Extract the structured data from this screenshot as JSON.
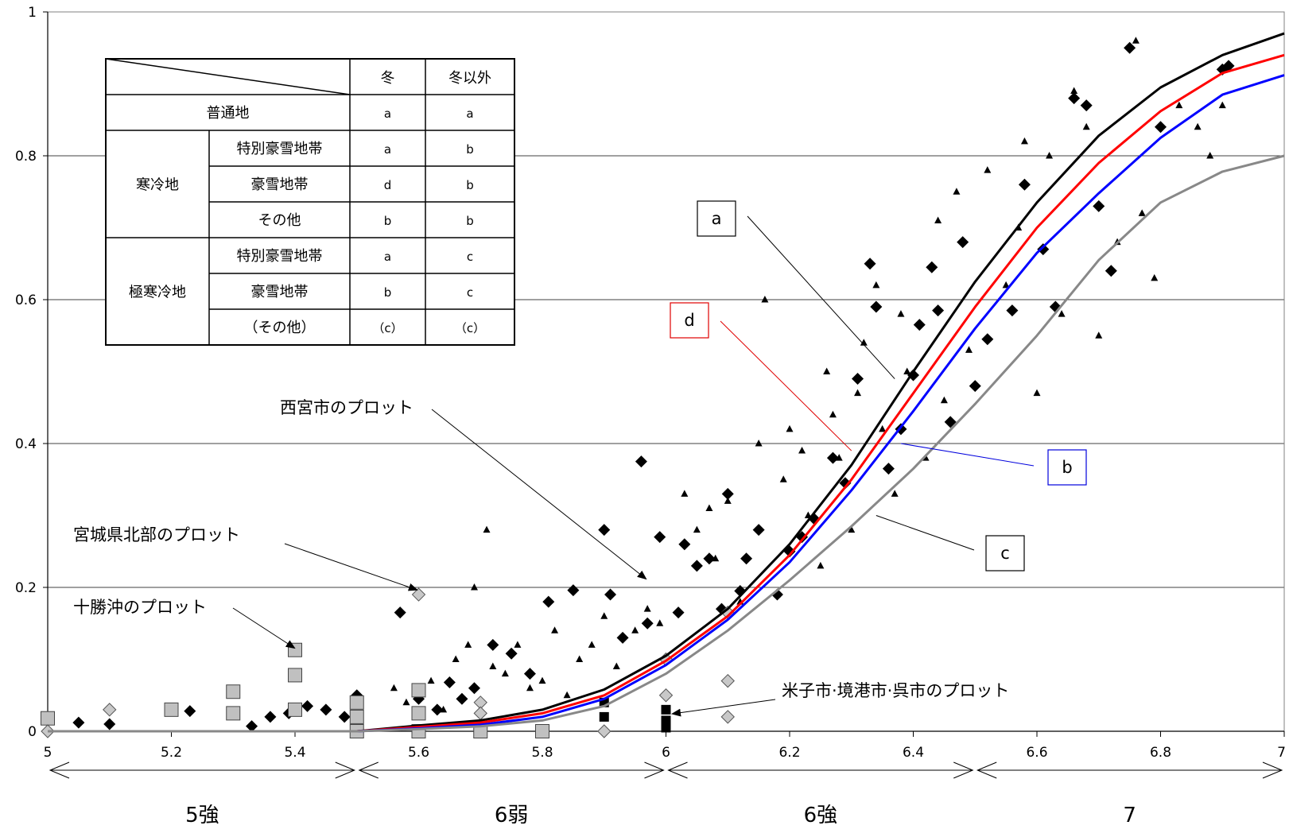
{
  "chart_data": {
    "type": "scatter",
    "title": "",
    "xlabel": "",
    "ylabel": "",
    "xlim": [
      5,
      7
    ],
    "ylim": [
      0,
      1
    ],
    "grid": "horizontal",
    "x_ticks": [
      "5",
      "5.2",
      "5.4",
      "5.6",
      "5.8",
      "6",
      "6.2",
      "6.4",
      "6.6",
      "6.8",
      "7"
    ],
    "y_ticks": [
      "0",
      "0.2",
      "0.4",
      "0.6",
      "0.8",
      "1"
    ],
    "intensity_bands": [
      {
        "label": "5強",
        "from": 5.0,
        "to": 5.5
      },
      {
        "label": "6弱",
        "from": 5.5,
        "to": 6.0
      },
      {
        "label": "6強",
        "from": 6.0,
        "to": 6.5
      },
      {
        "label": "7",
        "from": 6.5,
        "to": 7.0
      }
    ],
    "curves": [
      {
        "key": "a",
        "label": "a",
        "color": "#000000",
        "x": [
          5.0,
          5.5,
          5.6,
          5.7,
          5.8,
          5.9,
          6.0,
          6.1,
          6.2,
          6.3,
          6.4,
          6.5,
          6.6,
          6.7,
          6.8,
          6.9,
          7.0
        ],
        "y": [
          0.0,
          0.0,
          0.008,
          0.015,
          0.03,
          0.058,
          0.105,
          0.17,
          0.26,
          0.37,
          0.5,
          0.625,
          0.735,
          0.828,
          0.895,
          0.94,
          0.97
        ]
      },
      {
        "key": "d",
        "label": "d",
        "color": "#ff0000",
        "x": [
          5.0,
          5.5,
          5.6,
          5.7,
          5.8,
          5.9,
          6.0,
          6.1,
          6.2,
          6.3,
          6.4,
          6.5,
          6.6,
          6.7,
          6.8,
          6.9,
          7.0
        ],
        "y": [
          0.0,
          0.0,
          0.006,
          0.012,
          0.025,
          0.05,
          0.098,
          0.16,
          0.245,
          0.35,
          0.47,
          0.59,
          0.7,
          0.79,
          0.862,
          0.915,
          0.94
        ]
      },
      {
        "key": "b",
        "label": "b",
        "color": "#0000ff",
        "x": [
          5.0,
          5.5,
          5.6,
          5.7,
          5.8,
          5.9,
          6.0,
          6.1,
          6.2,
          6.3,
          6.4,
          6.5,
          6.6,
          6.7,
          6.8,
          6.9,
          7.0
        ],
        "y": [
          0.0,
          0.0,
          0.004,
          0.009,
          0.02,
          0.045,
          0.092,
          0.155,
          0.235,
          0.335,
          0.445,
          0.56,
          0.665,
          0.748,
          0.825,
          0.885,
          0.912
        ]
      },
      {
        "key": "c",
        "label": "c",
        "color": "#888888",
        "x": [
          5.0,
          5.5,
          5.6,
          5.7,
          5.8,
          5.9,
          6.0,
          6.1,
          6.2,
          6.3,
          6.4,
          6.5,
          6.6,
          6.7,
          6.8,
          6.9,
          7.0
        ],
        "y": [
          0.0,
          0.0,
          0.003,
          0.007,
          0.015,
          0.035,
          0.08,
          0.14,
          0.21,
          0.285,
          0.365,
          0.455,
          0.55,
          0.655,
          0.735,
          0.778,
          0.8
        ]
      }
    ],
    "series": [
      {
        "name": "西宮市のプロット",
        "marker": "diamond-black",
        "x": [
          5.05,
          5.1,
          5.23,
          5.33,
          5.36,
          5.39,
          5.42,
          5.45,
          5.48,
          5.5,
          5.57,
          5.6,
          5.63,
          5.65,
          5.67,
          5.69,
          5.72,
          5.75,
          5.78,
          5.81,
          5.85,
          5.9,
          5.91,
          5.93,
          5.96,
          5.97,
          5.99,
          6.02,
          6.03,
          6.05,
          6.07,
          6.09,
          6.1,
          6.12,
          6.13,
          6.15,
          6.18,
          6.2,
          6.22,
          6.24,
          6.27,
          6.29,
          6.31,
          6.33,
          6.34,
          6.36,
          6.38,
          6.4,
          6.41,
          6.43,
          6.44,
          6.46,
          6.48,
          6.5,
          6.52,
          6.56,
          6.58,
          6.61,
          6.63,
          6.66,
          6.68,
          6.7,
          6.72,
          6.75,
          6.8,
          6.9,
          6.91
        ],
        "y": [
          0.012,
          0.01,
          0.028,
          0.007,
          0.02,
          0.025,
          0.035,
          0.03,
          0.02,
          0.05,
          0.165,
          0.045,
          0.03,
          0.068,
          0.045,
          0.06,
          0.12,
          0.108,
          0.08,
          0.18,
          0.196,
          0.28,
          0.19,
          0.13,
          0.375,
          0.15,
          0.27,
          0.165,
          0.26,
          0.23,
          0.24,
          0.17,
          0.33,
          0.195,
          0.24,
          0.28,
          0.19,
          0.25,
          0.27,
          0.295,
          0.38,
          0.345,
          0.49,
          0.65,
          0.59,
          0.365,
          0.42,
          0.495,
          0.565,
          0.645,
          0.585,
          0.43,
          0.68,
          0.48,
          0.545,
          0.585,
          0.76,
          0.67,
          0.59,
          0.88,
          0.87,
          0.73,
          0.64,
          0.95,
          0.84,
          0.92,
          0.925
        ]
      },
      {
        "name": "宮城県北部のプロット",
        "marker": "diamond-gray",
        "x": [
          5.0,
          5.1,
          5.6,
          5.7,
          5.7,
          5.9,
          6.0,
          6.0,
          6.1,
          6.1,
          6.1
        ],
        "y": [
          0.0,
          0.03,
          0.19,
          0.04,
          0.025,
          0.0,
          0.1,
          0.05,
          0.165,
          0.07,
          0.02
        ],
        "labeled": true
      },
      {
        "name": "十勝沖のプロット",
        "marker": "square-gray",
        "x": [
          5.0,
          5.2,
          5.3,
          5.3,
          5.4,
          5.4,
          5.4,
          5.5,
          5.5,
          5.5,
          5.6,
          5.6,
          5.6,
          5.7,
          5.8
        ],
        "y": [
          0.018,
          0.03,
          0.055,
          0.025,
          0.113,
          0.078,
          0.03,
          0.04,
          0.02,
          0.0,
          0.057,
          0.025,
          0.0,
          0.0,
          0.0
        ],
        "labeled": true
      },
      {
        "name": "米子市・境港市・呉市のプロット",
        "marker": "square-black",
        "x": [
          5.9,
          5.9,
          6.0,
          6.0,
          6.0
        ],
        "y": [
          0.04,
          0.02,
          0.03,
          0.015,
          0.005
        ],
        "labeled": true
      },
      {
        "name": "small-triangles",
        "marker": "triangle",
        "x": [
          5.56,
          5.58,
          5.62,
          5.64,
          5.66,
          5.68,
          5.69,
          5.71,
          5.72,
          5.74,
          5.76,
          5.78,
          5.8,
          5.82,
          5.84,
          5.86,
          5.88,
          5.9,
          5.92,
          5.95,
          5.97,
          5.99,
          6.03,
          6.05,
          6.07,
          6.08,
          6.1,
          6.12,
          6.15,
          6.16,
          6.18,
          6.19,
          6.2,
          6.22,
          6.23,
          6.25,
          6.26,
          6.27,
          6.28,
          6.3,
          6.31,
          6.32,
          6.34,
          6.35,
          6.37,
          6.38,
          6.39,
          6.42,
          6.44,
          6.45,
          6.47,
          6.49,
          6.52,
          6.55,
          6.57,
          6.58,
          6.6,
          6.62,
          6.64,
          6.66,
          6.68,
          6.7,
          6.73,
          6.76,
          6.77,
          6.79,
          6.83,
          6.86,
          6.88,
          6.9
        ],
        "y": [
          0.06,
          0.04,
          0.07,
          0.03,
          0.1,
          0.12,
          0.2,
          0.28,
          0.09,
          0.08,
          0.12,
          0.06,
          0.07,
          0.14,
          0.05,
          0.1,
          0.12,
          0.16,
          0.09,
          0.14,
          0.17,
          0.15,
          0.33,
          0.28,
          0.31,
          0.24,
          0.32,
          0.18,
          0.4,
          0.6,
          0.19,
          0.35,
          0.42,
          0.39,
          0.3,
          0.23,
          0.5,
          0.44,
          0.38,
          0.28,
          0.47,
          0.54,
          0.62,
          0.42,
          0.33,
          0.58,
          0.5,
          0.38,
          0.71,
          0.46,
          0.75,
          0.53,
          0.78,
          0.62,
          0.7,
          0.82,
          0.47,
          0.8,
          0.58,
          0.89,
          0.84,
          0.55,
          0.68,
          0.96,
          0.72,
          0.63,
          0.87,
          0.84,
          0.8,
          0.87
        ]
      }
    ],
    "annotations": [
      {
        "key": "nishinomiya",
        "text": "西宮市のプロット"
      },
      {
        "key": "miyagi",
        "text": "宮城県北部のプロット"
      },
      {
        "key": "tokachi",
        "text": "十勝沖のプロット"
      },
      {
        "key": "yonago",
        "text": "米子市·境港市·呉市のプロット"
      }
    ]
  },
  "legend_table": {
    "headers": [
      "冬",
      "冬以外"
    ],
    "rows": [
      {
        "group": "",
        "label": "普通地",
        "winter": "a",
        "other": "a"
      },
      {
        "group": "寒冷地",
        "label": "特別豪雪地帯",
        "winter": "a",
        "other": "b"
      },
      {
        "group": "",
        "label": "豪雪地帯",
        "winter": "d",
        "other": "b"
      },
      {
        "group": "",
        "label": "その他",
        "winter": "b",
        "other": "b"
      },
      {
        "group": "極寒冷地",
        "label": "特別豪雪地帯",
        "winter": "a",
        "other": "c"
      },
      {
        "group": "",
        "label": "豪雪地帯",
        "winter": "b",
        "other": "c"
      },
      {
        "group": "",
        "label": "（その他）",
        "winter": "（c）",
        "other": "（c）"
      }
    ]
  }
}
